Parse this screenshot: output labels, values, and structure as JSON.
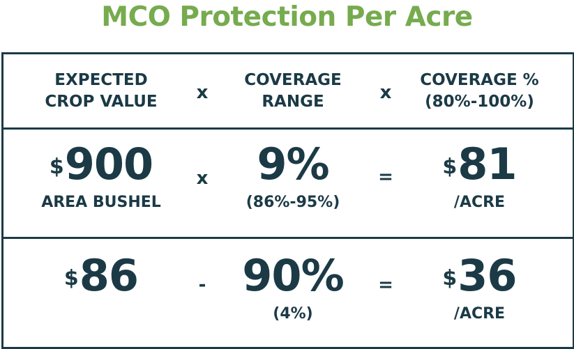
{
  "title": "MCO Protection Per Acre",
  "header": {
    "col1_line1": "EXPECTED",
    "col1_line2": "CROP VALUE",
    "op1": "x",
    "col2_line1": "COVERAGE",
    "col2_line2": "RANGE",
    "op2": "x",
    "col3_line1": "COVERAGE %",
    "col3_line2": "(80%-100%)"
  },
  "row1": {
    "currency1": "$",
    "value1": "900",
    "label1": "AREA BUSHEL",
    "op1": "x",
    "value2": "9%",
    "label2": "(86%-95%)",
    "op2": "=",
    "currency3": "$",
    "value3": "81",
    "label3": "/ACRE"
  },
  "row2": {
    "currency1": "$",
    "value1": "86",
    "op1": "-",
    "value2": "90%",
    "label2": "(4%)",
    "op2": "=",
    "currency3": "$",
    "value3": "36",
    "label3": "/ACRE"
  },
  "colors": {
    "title": "#76ab4e",
    "text": "#1b3a46",
    "border": "#1b3a46"
  }
}
